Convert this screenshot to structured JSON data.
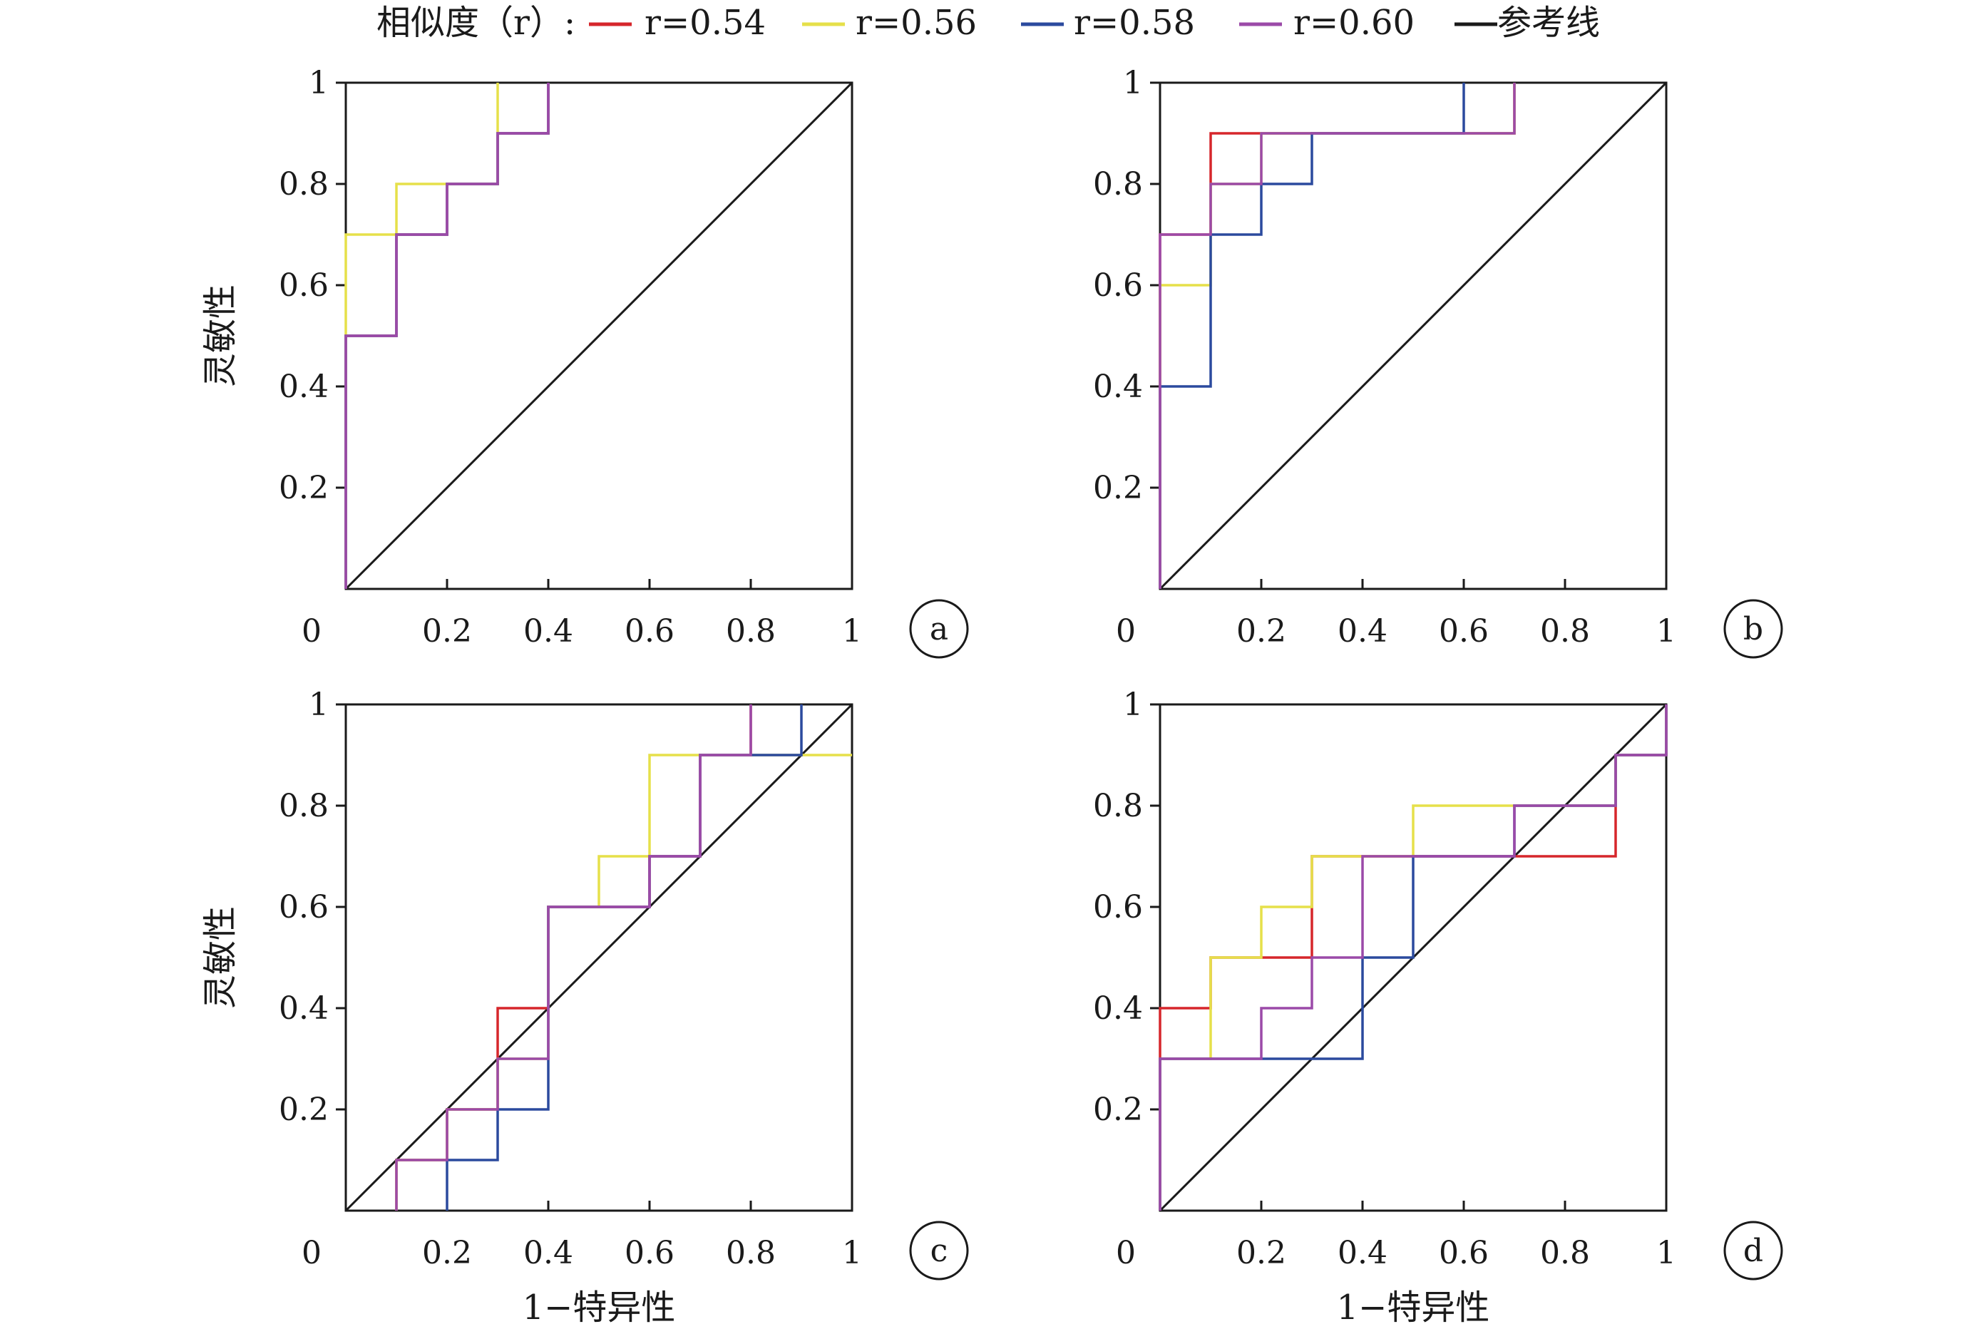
{
  "legend": {
    "prefix": "相似度（r）:",
    "items": [
      {
        "label": "r=0.54",
        "color": "#d6262b"
      },
      {
        "label": "r=0.56",
        "color": "#e6e04a"
      },
      {
        "label": "r=0.58",
        "color": "#2b4a9e"
      },
      {
        "label": "r=0.60",
        "color": "#9b4aa8"
      },
      {
        "label": "参考线",
        "color": "#1a1a1a"
      }
    ]
  },
  "chart_data": [
    {
      "type": "line",
      "panel": "a",
      "ylabel": "灵敏性",
      "xlabel": "",
      "xlim": [
        0,
        1
      ],
      "ylim": [
        0,
        1
      ],
      "xticks": [
        "0",
        "0.2",
        "0.4",
        "0.6",
        "0.8",
        "1"
      ],
      "yticks": [
        "1",
        "0.8",
        "0.6",
        "0.4",
        "0.2"
      ],
      "series": [
        {
          "name": "r=0.54",
          "color": "#d6262b",
          "x": [
            0,
            0,
            0.1,
            0.1,
            0.2,
            0.2,
            0.3,
            0.3,
            0.4,
            0.4
          ],
          "y": [
            0,
            0.5,
            0.5,
            0.7,
            0.7,
            0.8,
            0.8,
            0.9,
            0.9,
            1.0
          ]
        },
        {
          "name": "r=0.56",
          "color": "#e6e04a",
          "x": [
            0,
            0,
            0.1,
            0.1,
            0.3,
            0.3
          ],
          "y": [
            0,
            0.7,
            0.7,
            0.8,
            0.8,
            1.0
          ]
        },
        {
          "name": "r=0.58",
          "color": "#2b4a9e",
          "x": [
            0,
            0,
            0.1,
            0.1,
            0.2,
            0.2,
            0.3,
            0.3,
            0.4,
            0.4
          ],
          "y": [
            0,
            0.5,
            0.5,
            0.7,
            0.7,
            0.8,
            0.8,
            0.9,
            0.9,
            1.0
          ]
        },
        {
          "name": "r=0.60",
          "color": "#9b4aa8",
          "x": [
            0,
            0,
            0.1,
            0.1,
            0.2,
            0.2,
            0.3,
            0.3,
            0.4,
            0.4
          ],
          "y": [
            0,
            0.5,
            0.5,
            0.7,
            0.7,
            0.8,
            0.8,
            0.9,
            0.9,
            1.0
          ]
        },
        {
          "name": "参考线",
          "color": "#1a1a1a",
          "x": [
            0,
            1
          ],
          "y": [
            0,
            1
          ]
        }
      ]
    },
    {
      "type": "line",
      "panel": "b",
      "ylabel": "",
      "xlabel": "",
      "xlim": [
        0,
        1
      ],
      "ylim": [
        0,
        1
      ],
      "xticks": [
        "0",
        "0.2",
        "0.4",
        "0.6",
        "0.8",
        "1"
      ],
      "yticks": [
        "1",
        "0.8",
        "0.6",
        "0.4",
        "0.2"
      ],
      "series": [
        {
          "name": "r=0.54",
          "color": "#d6262b",
          "x": [
            0,
            0,
            0.1,
            0.1,
            0.2,
            0.2,
            0.7,
            0.7
          ],
          "y": [
            0,
            0.7,
            0.7,
            0.9,
            0.9,
            0.9,
            0.9,
            1.0
          ]
        },
        {
          "name": "r=0.56",
          "color": "#e6e04a",
          "x": [
            0,
            0,
            0.1,
            0.1,
            0.2,
            0.2,
            0.7,
            0.7
          ],
          "y": [
            0,
            0.6,
            0.6,
            0.8,
            0.8,
            0.9,
            0.9,
            1.0
          ]
        },
        {
          "name": "r=0.58",
          "color": "#2b4a9e",
          "x": [
            0,
            0,
            0.1,
            0.1,
            0.2,
            0.2,
            0.3,
            0.3,
            0.6,
            0.6
          ],
          "y": [
            0,
            0.4,
            0.4,
            0.7,
            0.7,
            0.8,
            0.8,
            0.9,
            0.9,
            1.0
          ]
        },
        {
          "name": "r=0.60",
          "color": "#9b4aa8",
          "x": [
            0,
            0,
            0.1,
            0.1,
            0.2,
            0.2,
            0.7,
            0.7
          ],
          "y": [
            0,
            0.7,
            0.7,
            0.8,
            0.8,
            0.9,
            0.9,
            1.0
          ]
        },
        {
          "name": "参考线",
          "color": "#1a1a1a",
          "x": [
            0,
            1
          ],
          "y": [
            0,
            1
          ]
        }
      ]
    },
    {
      "type": "line",
      "panel": "c",
      "ylabel": "灵敏性",
      "xlabel": "1−特异性",
      "xlim": [
        0,
        1
      ],
      "ylim": [
        0,
        1
      ],
      "xticks": [
        "0",
        "0.2",
        "0.4",
        "0.6",
        "0.8",
        "1"
      ],
      "yticks": [
        "1",
        "0.8",
        "0.6",
        "0.4",
        "0.2"
      ],
      "series": [
        {
          "name": "r=0.54",
          "color": "#d6262b",
          "x": [
            0.1,
            0.1,
            0.2,
            0.2,
            0.3,
            0.3,
            0.4,
            0.4,
            0.6,
            0.6,
            0.7,
            0.7,
            0.8,
            0.8
          ],
          "y": [
            0,
            0.1,
            0.1,
            0.2,
            0.2,
            0.4,
            0.4,
            0.6,
            0.6,
            0.7,
            0.7,
            0.9,
            0.9,
            1.0
          ]
        },
        {
          "name": "r=0.56",
          "color": "#e6e04a",
          "x": [
            0.1,
            0.1,
            0.2,
            0.2,
            0.3,
            0.3,
            0.4,
            0.4,
            0.5,
            0.5,
            0.6,
            0.6,
            1.0
          ],
          "y": [
            0,
            0.1,
            0.1,
            0.2,
            0.2,
            0.3,
            0.3,
            0.6,
            0.6,
            0.7,
            0.7,
            0.9,
            0.9
          ]
        },
        {
          "name": "r=0.58",
          "color": "#2b4a9e",
          "x": [
            0.2,
            0.2,
            0.3,
            0.3,
            0.4,
            0.4,
            0.6,
            0.6,
            0.7,
            0.7,
            0.9,
            0.9
          ],
          "y": [
            0,
            0.1,
            0.1,
            0.2,
            0.2,
            0.6,
            0.6,
            0.7,
            0.7,
            0.9,
            0.9,
            1.0
          ]
        },
        {
          "name": "r=0.60",
          "color": "#9b4aa8",
          "x": [
            0.1,
            0.1,
            0.2,
            0.2,
            0.3,
            0.3,
            0.4,
            0.4,
            0.6,
            0.6,
            0.7,
            0.7,
            0.8,
            0.8
          ],
          "y": [
            0,
            0.1,
            0.1,
            0.2,
            0.2,
            0.3,
            0.3,
            0.6,
            0.6,
            0.7,
            0.7,
            0.9,
            0.9,
            1.0
          ]
        },
        {
          "name": "参考线",
          "color": "#1a1a1a",
          "x": [
            0,
            1
          ],
          "y": [
            0,
            1
          ]
        }
      ]
    },
    {
      "type": "line",
      "panel": "d",
      "ylabel": "",
      "xlabel": "1−特异性",
      "xlim": [
        0,
        1
      ],
      "ylim": [
        0,
        1
      ],
      "xticks": [
        "0",
        "0.2",
        "0.4",
        "0.6",
        "0.8",
        "1"
      ],
      "yticks": [
        "1",
        "0.8",
        "0.6",
        "0.4",
        "0.2"
      ],
      "series": [
        {
          "name": "r=0.54",
          "color": "#d6262b",
          "x": [
            0,
            0,
            0.1,
            0.1,
            0.3,
            0.3,
            0.9,
            0.9,
            1.0,
            1.0
          ],
          "y": [
            0,
            0.4,
            0.4,
            0.5,
            0.5,
            0.7,
            0.7,
            0.9,
            0.9,
            1.0
          ]
        },
        {
          "name": "r=0.56",
          "color": "#e6e04a",
          "x": [
            0,
            0,
            0.1,
            0.1,
            0.2,
            0.2,
            0.3,
            0.3,
            0.5,
            0.5,
            0.7,
            0.7,
            0.9,
            0.9,
            1.0,
            1.0
          ],
          "y": [
            0,
            0.3,
            0.3,
            0.5,
            0.5,
            0.6,
            0.6,
            0.7,
            0.7,
            0.8,
            0.8,
            0.8,
            0.8,
            0.9,
            0.9,
            1.0
          ]
        },
        {
          "name": "r=0.58",
          "color": "#2b4a9e",
          "x": [
            0,
            0,
            0.4,
            0.4,
            0.5,
            0.5,
            0.7,
            0.7,
            0.9,
            0.9,
            1.0,
            1.0
          ],
          "y": [
            0,
            0.3,
            0.3,
            0.5,
            0.5,
            0.7,
            0.7,
            0.8,
            0.8,
            0.9,
            0.9,
            1.0
          ]
        },
        {
          "name": "r=0.60",
          "color": "#9b4aa8",
          "x": [
            0,
            0,
            0.2,
            0.2,
            0.3,
            0.3,
            0.4,
            0.4,
            0.7,
            0.7,
            0.9,
            0.9,
            1.0,
            1.0
          ],
          "y": [
            0,
            0.3,
            0.3,
            0.4,
            0.4,
            0.5,
            0.5,
            0.7,
            0.7,
            0.8,
            0.8,
            0.9,
            0.9,
            1.0
          ]
        },
        {
          "name": "参考线",
          "color": "#1a1a1a",
          "x": [
            0,
            1
          ],
          "y": [
            0,
            1
          ]
        }
      ]
    }
  ]
}
